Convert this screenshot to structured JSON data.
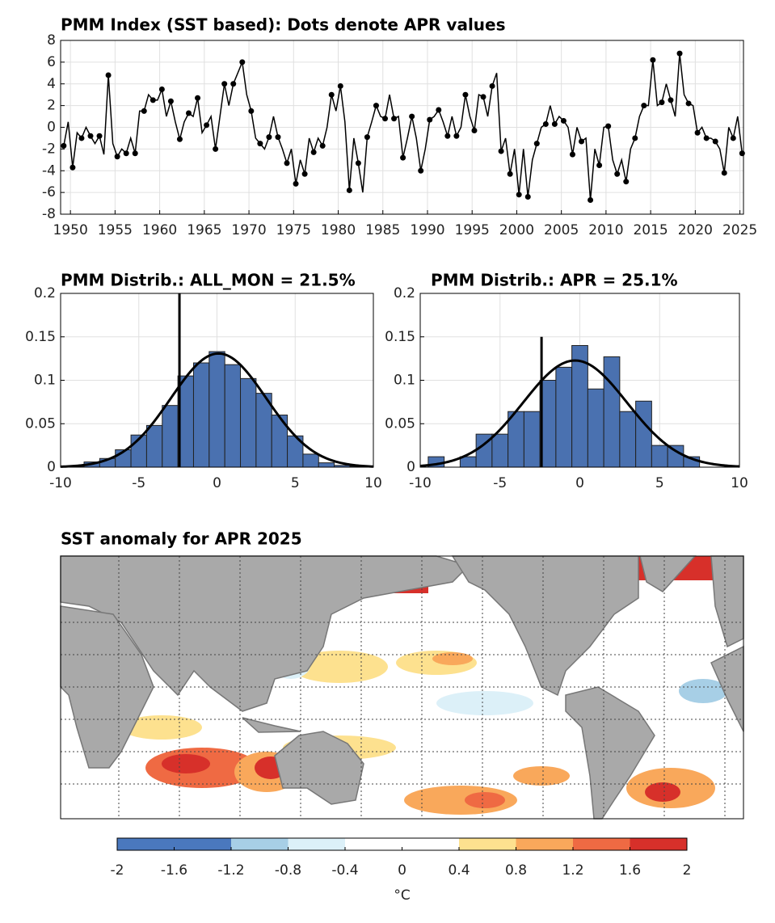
{
  "chart_data": [
    {
      "type": "line",
      "title": "PMM Index (SST based):  Dots denote APR values",
      "xlim": [
        1948.9,
        2025.4
      ],
      "ylim": [
        -8,
        8
      ],
      "xticks": [
        1950,
        1955,
        1960,
        1965,
        1970,
        1975,
        1980,
        1985,
        1990,
        1995,
        2000,
        2005,
        2010,
        2015,
        2020,
        2025
      ],
      "yticks": [
        -8,
        -6,
        -4,
        -2,
        0,
        2,
        4,
        6,
        8
      ],
      "grid": true,
      "series": [
        {
          "color": "#000000",
          "marker": false,
          "x": [
            1949.25,
            1949.75,
            1950.25,
            1950.75,
            1951.25,
            1951.75,
            1952.25,
            1952.75,
            1953.25,
            1953.75,
            1954.25,
            1954.75,
            1955.25,
            1955.75,
            1956.25,
            1956.75,
            1957.25,
            1957.75,
            1958.25,
            1958.75,
            1959.25,
            1959.75,
            1960.25,
            1960.75,
            1961.25,
            1961.75,
            1962.25,
            1962.75,
            1963.25,
            1963.75,
            1964.25,
            1964.75,
            1965.25,
            1965.75,
            1966.25,
            1966.75,
            1967.25,
            1967.75,
            1968.25,
            1968.75,
            1969.25,
            1969.75,
            1970.25,
            1970.75,
            1971.25,
            1971.75,
            1972.25,
            1972.75,
            1973.25,
            1973.75,
            1974.25,
            1974.75,
            1975.25,
            1975.75,
            1976.25,
            1976.75,
            1977.25,
            1977.75,
            1978.25,
            1978.75,
            1979.25,
            1979.75,
            1980.25,
            1980.75,
            1981.25,
            1981.75,
            1982.25,
            1982.75,
            1983.25,
            1983.75,
            1984.25,
            1984.75,
            1985.25,
            1985.75,
            1986.25,
            1986.75,
            1987.25,
            1987.75,
            1988.25,
            1988.75,
            1989.25,
            1989.75,
            1990.25,
            1990.75,
            1991.25,
            1991.75,
            1992.25,
            1992.75,
            1993.25,
            1993.75,
            1994.25,
            1994.75,
            1995.25,
            1995.75,
            1996.25,
            1996.75,
            1997.25,
            1997.75,
            1998.25,
            1998.75,
            1999.25,
            1999.75,
            2000.25,
            2000.75,
            2001.25,
            2001.75,
            2002.25,
            2002.75,
            2003.25,
            2003.75,
            2004.25,
            2004.75,
            2005.25,
            2005.75,
            2006.25,
            2006.75,
            2007.25,
            2007.75,
            2008.25,
            2008.75,
            2009.25,
            2009.75,
            2010.25,
            2010.75,
            2011.25,
            2011.75,
            2012.25,
            2012.75,
            2013.25,
            2013.75,
            2014.25,
            2014.75,
            2015.25,
            2015.75,
            2016.25,
            2016.75,
            2017.25,
            2017.75,
            2018.25,
            2018.75,
            2019.25,
            2019.75,
            2020.25,
            2020.75,
            2021.25,
            2021.75,
            2022.25,
            2022.75,
            2023.25,
            2023.75,
            2024.25,
            2024.75,
            2025.25
          ],
          "values": [
            -1.7,
            0.5,
            -3.7,
            -0.5,
            -1.0,
            0,
            -0.8,
            -1.5,
            -0.8,
            -2.5,
            4.8,
            -1.5,
            -2.7,
            -2,
            -2.4,
            -1,
            -2.4,
            1.5,
            1.5,
            3,
            2.5,
            2.5,
            3.5,
            1,
            2.4,
            0.5,
            -1.1,
            0.5,
            1.3,
            1,
            2.7,
            -0.5,
            0.2,
            1,
            -2.0,
            1,
            4.0,
            2,
            4.0,
            5,
            6.0,
            3,
            1.5,
            -1,
            -1.5,
            -2,
            -0.9,
            1,
            -0.9,
            -2,
            -3.3,
            -2,
            -5.2,
            -3,
            -4.3,
            -1,
            -2.3,
            -1,
            -1.7,
            0,
            3.0,
            1.5,
            3.8,
            0.5,
            -5.8,
            -1,
            -3.3,
            -6,
            -0.9,
            0.5,
            2.0,
            1,
            0.8,
            3,
            0.8,
            1,
            -2.8,
            -1,
            1.0,
            -1,
            -4.0,
            -2,
            0.7,
            1,
            1.6,
            0.5,
            -0.8,
            1,
            -0.8,
            0,
            3.0,
            1,
            -0.3,
            3,
            2.8,
            1,
            3.8,
            5,
            -2.2,
            -1,
            -4.3,
            -2,
            -6.2,
            -2,
            -6.4,
            -3,
            -1.5,
            0,
            0.3,
            2,
            0.3,
            1,
            0.6,
            0,
            -2.5,
            0,
            -1.3,
            -1,
            -6.7,
            -2,
            -3.5,
            0,
            0.1,
            -3,
            -4.3,
            -3,
            -5.0,
            -2,
            -1.0,
            1,
            2.0,
            2,
            6.2,
            2,
            2.3,
            4,
            2.5,
            1,
            6.8,
            3,
            2.2,
            2,
            -0.5,
            0,
            -1.0,
            -1,
            -1.3,
            -2,
            -4.2,
            0,
            -1.0,
            1,
            -2.4
          ]
        },
        {
          "color": "#000000",
          "marker": true,
          "x": [
            1949.25,
            1950.25,
            1951.25,
            1952.25,
            1953.25,
            1954.25,
            1955.25,
            1956.25,
            1957.25,
            1958.25,
            1959.25,
            1960.25,
            1961.25,
            1962.25,
            1963.25,
            1964.25,
            1965.25,
            1966.25,
            1967.25,
            1968.25,
            1969.25,
            1970.25,
            1971.25,
            1972.25,
            1973.25,
            1974.25,
            1975.25,
            1976.25,
            1977.25,
            1978.25,
            1979.25,
            1980.25,
            1981.25,
            1982.25,
            1983.25,
            1984.25,
            1985.25,
            1986.25,
            1987.25,
            1988.25,
            1989.25,
            1990.25,
            1991.25,
            1992.25,
            1993.25,
            1994.25,
            1995.25,
            1996.25,
            1997.25,
            1998.25,
            1999.25,
            2000.25,
            2001.25,
            2002.25,
            2003.25,
            2004.25,
            2005.25,
            2006.25,
            2007.25,
            2008.25,
            2009.25,
            2010.25,
            2011.25,
            2012.25,
            2013.25,
            2014.25,
            2015.25,
            2016.25,
            2017.25,
            2018.25,
            2019.25,
            2020.25,
            2021.25,
            2022.25,
            2023.25,
            2024.25,
            2025.25
          ],
          "values": [
            -1.7,
            -3.7,
            -1.0,
            -0.8,
            -0.8,
            4.8,
            -2.7,
            -2.4,
            -2.4,
            1.5,
            2.5,
            3.5,
            2.4,
            -1.1,
            1.3,
            2.7,
            0.2,
            -2.0,
            4.0,
            4.0,
            6.0,
            1.5,
            -1.5,
            -0.9,
            -0.9,
            -3.3,
            -5.2,
            -4.3,
            -2.3,
            -1.7,
            3.0,
            3.8,
            -5.8,
            -3.3,
            -0.9,
            2.0,
            0.8,
            0.8,
            -2.8,
            1.0,
            -4.0,
            0.7,
            1.6,
            -0.8,
            -0.8,
            3.0,
            -0.3,
            2.8,
            3.8,
            -2.2,
            -4.3,
            -6.2,
            -6.4,
            -1.5,
            0.3,
            0.3,
            0.6,
            -2.5,
            -1.3,
            -6.7,
            -3.5,
            0.1,
            -4.3,
            -5.0,
            -1.0,
            2.0,
            6.2,
            2.3,
            2.5,
            6.8,
            2.2,
            -0.5,
            -1.0,
            -1.3,
            -4.2,
            -1.0,
            -2.4
          ]
        }
      ]
    },
    {
      "type": "histogram",
      "title": "PMM Distrib.: ALL_MON = 21.5%",
      "color": "#4a71b0",
      "bins": [
        -9.5,
        -8.5,
        -7.5,
        -6.5,
        -5.5,
        -4.5,
        -3.5,
        -2.5,
        -1.5,
        -0.5,
        0.5,
        1.5,
        2.5,
        3.5,
        4.5,
        5.5,
        6.5,
        7.5,
        8.5,
        9.5
      ],
      "values": [
        0.001,
        0.006,
        0.01,
        0.02,
        0.037,
        0.048,
        0.071,
        0.105,
        0.12,
        0.133,
        0.118,
        0.102,
        0.085,
        0.06,
        0.036,
        0.015,
        0.005,
        0.002,
        0.001
      ],
      "fit": {
        "mean": 0.1,
        "std": 3.05
      },
      "marker": {
        "x": -2.4,
        "height": 0.2
      },
      "xlim": [
        -10,
        10
      ],
      "ylim": [
        0,
        0.2
      ],
      "xticks": [
        -10,
        -5,
        0,
        5,
        10
      ],
      "yticks": [
        0,
        0.05,
        0.1,
        0.15,
        0.2
      ],
      "grid": true
    },
    {
      "type": "histogram",
      "title": "PMM Distrib.: APR = 25.1%",
      "color": "#4a71b0",
      "bins": [
        -9.5,
        -8.5,
        -7.5,
        -6.5,
        -5.5,
        -4.5,
        -3.5,
        -2.5,
        -1.5,
        -0.5,
        0.5,
        1.5,
        2.5,
        3.5,
        4.5,
        5.5,
        6.5,
        7.5
      ],
      "values": [
        0.012,
        0,
        0.012,
        0.038,
        0.038,
        0.064,
        0.064,
        0.1,
        0.115,
        0.14,
        0.09,
        0.127,
        0.064,
        0.076,
        0.025,
        0.025,
        0.012
      ],
      "fit": {
        "mean": -0.3,
        "std": 3.25
      },
      "marker": {
        "x": -2.4,
        "height": 0.15
      },
      "xlim": [
        -10,
        10
      ],
      "ylim": [
        0,
        0.2
      ],
      "xticks": [
        -10,
        -5,
        0,
        5,
        10
      ],
      "yticks": [
        0,
        0.05,
        0.1,
        0.15,
        0.2
      ],
      "grid": true
    },
    {
      "type": "map",
      "title": "SST anomaly for APR 2025",
      "colorbar": {
        "label": "°C",
        "ticks": [
          -2,
          -1.6,
          -1.2,
          -0.8,
          -0.4,
          0,
          0.4,
          0.8,
          1.2,
          1.6,
          2
        ],
        "colors": [
          "#4a78be",
          "#4a78be",
          "#a7cfe6",
          "#dcf0f8",
          "#ffffff",
          "#ffffff",
          "#fde18f",
          "#f9a85b",
          "#ef6a43",
          "#d7302a"
        ]
      }
    }
  ]
}
